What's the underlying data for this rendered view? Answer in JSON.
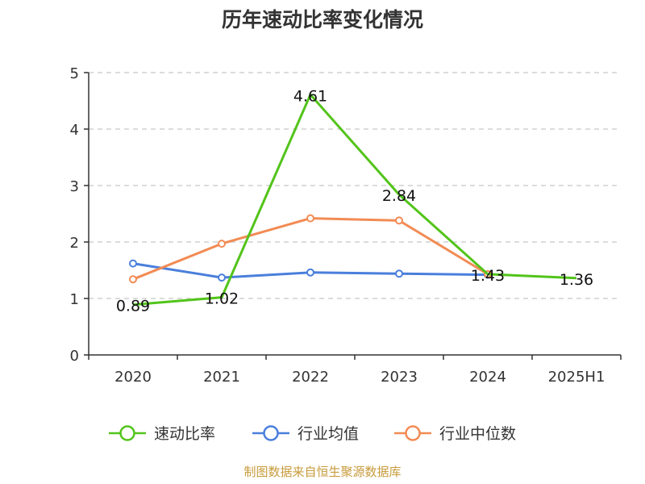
{
  "chart_data": {
    "type": "line",
    "title": "历年速动比率变化情况",
    "categories": [
      "2020",
      "2021",
      "2022",
      "2023",
      "2024",
      "2025H1"
    ],
    "ylim": [
      0,
      5
    ],
    "yticks": [
      "0",
      "1",
      "2",
      "3",
      "4",
      "5"
    ],
    "grid": true,
    "legend_position": "bottom",
    "series": [
      {
        "name": "速动比率",
        "color": "#52c41a",
        "values": [
          0.89,
          1.02,
          4.61,
          2.84,
          1.43,
          1.36
        ],
        "labels": [
          "0.89",
          "1.02",
          "4.61",
          "2.84",
          "1.43",
          "1.36"
        ]
      },
      {
        "name": "行业均值",
        "color": "#4a7fdc",
        "values": [
          1.62,
          1.37,
          1.46,
          1.44,
          1.42,
          null
        ]
      },
      {
        "name": "行业中位数",
        "color": "#f28b54",
        "values": [
          1.34,
          1.97,
          2.42,
          2.38,
          1.43,
          null
        ]
      }
    ],
    "source": "制图数据来自恒生聚源数据库",
    "source_color": "#c79b3b"
  }
}
